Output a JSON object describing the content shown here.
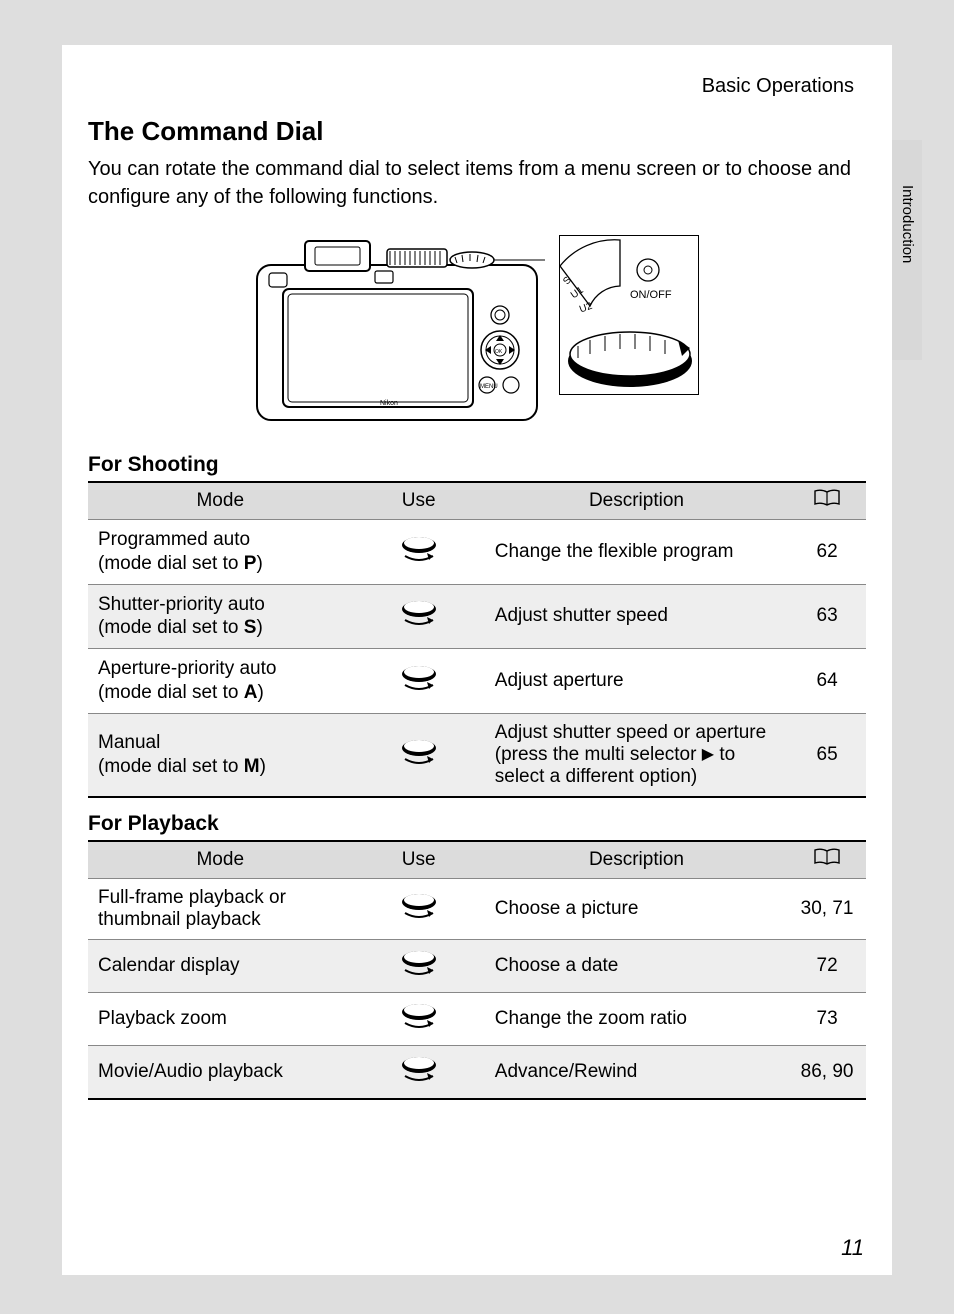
{
  "header_label": "Basic Operations",
  "side_tab": "Introduction",
  "title": "The Command Dial",
  "intro": "You can rotate the command dial to select items from a menu screen or to choose and configure any of the following functions.",
  "onoff_label": "ON/OFF",
  "section_shooting": "For Shooting",
  "section_playback": "For Playback",
  "table_headers": {
    "mode": "Mode",
    "use": "Use",
    "description": "Description"
  },
  "shooting_rows": [
    {
      "mode_line1": "Programmed auto",
      "mode_line2_prefix": "(mode dial set to ",
      "mode_letter": "P",
      "mode_line2_suffix": ")",
      "description": "Change the flexible program",
      "page": "62"
    },
    {
      "mode_line1": "Shutter-priority auto",
      "mode_line2_prefix": "(mode dial set to ",
      "mode_letter": "S",
      "mode_line2_suffix": ")",
      "description": "Adjust shutter speed",
      "page": "63"
    },
    {
      "mode_line1": "Aperture-priority auto",
      "mode_line2_prefix": "(mode dial set to ",
      "mode_letter": "A",
      "mode_line2_suffix": ")",
      "description": "Adjust aperture",
      "page": "64"
    },
    {
      "mode_line1": "Manual",
      "mode_line2_prefix": "(mode dial set to ",
      "mode_letter": "M",
      "mode_line2_suffix": ")",
      "description_pre": "Adjust shutter speed or aperture (press the multi selector ",
      "description_post": " to select a different option)",
      "page": "65"
    }
  ],
  "playback_rows": [
    {
      "mode": "Full-frame playback or thumbnail playback",
      "description": "Choose a picture",
      "page": "30, 71"
    },
    {
      "mode": "Calendar display",
      "description": "Choose a date",
      "page": "72"
    },
    {
      "mode": "Playback zoom",
      "description": "Change the zoom ratio",
      "page": "73"
    },
    {
      "mode": "Movie/Audio playback",
      "description": "Advance/Rewind",
      "page": "86, 90"
    }
  ],
  "page_number": "11",
  "colors": {
    "page_bg": "#ffffff",
    "outer_bg": "#dedede",
    "header_bg": "#dcdcdc",
    "row_alt": "#eeeeee",
    "border": "#000000",
    "row_border": "#888888"
  }
}
